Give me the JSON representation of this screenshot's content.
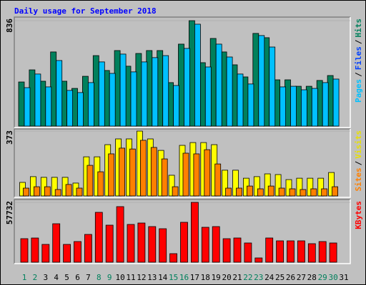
{
  "chart_data": [
    {
      "type": "bar",
      "title": "Daily usage for September 2018",
      "ylim": [
        0,
        836
      ],
      "yticks": [
        836
      ],
      "legend_separator": "/",
      "series": [
        {
          "name": "Pages",
          "color": "#00c0ff",
          "values": [
            305,
            413,
            311,
            520,
            283,
            266,
            345,
            509,
            418,
            571,
            430,
            509,
            543,
            559,
            322,
            616,
            808,
            469,
            650,
            548,
            413,
            334,
            718,
            627,
            311,
            316,
            288,
            299,
            345,
            373,
            null
          ]
        },
        {
          "name": "Files",
          "color": "#0040ff",
          "values": [
            null,
            null,
            null,
            null,
            null,
            null,
            null,
            null,
            null,
            null,
            null,
            null,
            null,
            null,
            null,
            null,
            null,
            null,
            null,
            null,
            null,
            null,
            null,
            null,
            null,
            null,
            null,
            null,
            null,
            null,
            null
          ]
        },
        {
          "name": "Hits",
          "color": "#00805c",
          "values": [
            350,
            446,
            356,
            588,
            356,
            299,
            395,
            559,
            441,
            599,
            475,
            576,
            599,
            599,
            345,
            650,
            836,
            503,
            695,
            588,
            486,
            390,
            735,
            701,
            367,
            367,
            316,
            316,
            362,
            401,
            null
          ]
        }
      ]
    },
    {
      "type": "bar",
      "ylim": [
        0,
        373
      ],
      "yticks": [
        373
      ],
      "legend_separator": "/",
      "series": [
        {
          "name": "Sites",
          "color": "#ff8000",
          "values": [
            45,
            53,
            53,
            37,
            66,
            45,
            176,
            139,
            242,
            275,
            270,
            320,
            279,
            213,
            53,
            246,
            242,
            266,
            184,
            45,
            45,
            57,
            41,
            57,
            45,
            41,
            37,
            41,
            41,
            53,
            null
          ]
        },
        {
          "name": "Visits",
          "color": "#ffff00",
          "values": [
            78,
            111,
            107,
            107,
            107,
            74,
            225,
            225,
            295,
            328,
            328,
            373,
            328,
            262,
            119,
            291,
            307,
            307,
            295,
            148,
            148,
            102,
            111,
            127,
            123,
            94,
            102,
            102,
            102,
            135,
            null
          ]
        }
      ]
    },
    {
      "type": "bar",
      "ylim": [
        0,
        57732
      ],
      "yticks": [
        57732
      ],
      "categories": [
        "1",
        "2",
        "3",
        "4",
        "5",
        "6",
        "7",
        "8",
        "9",
        "10",
        "11",
        "12",
        "13",
        "14",
        "15",
        "16",
        "17",
        "18",
        "19",
        "20",
        "21",
        "22",
        "23",
        "24",
        "25",
        "26",
        "27",
        "28",
        "29",
        "30",
        "31"
      ],
      "category_colors": [
        "#00805c",
        "#00805c",
        "#000000",
        "#000000",
        "#000000",
        "#000000",
        "#000000",
        "#00805c",
        "#00805c",
        "#000000",
        "#000000",
        "#000000",
        "#000000",
        "#000000",
        "#00805c",
        "#00805c",
        "#000000",
        "#000000",
        "#000000",
        "#000000",
        "#000000",
        "#00805c",
        "#00805c",
        "#000000",
        "#000000",
        "#000000",
        "#000000",
        "#000000",
        "#00805c",
        "#00805c",
        "#000000"
      ],
      "series": [
        {
          "name": "KBytes",
          "color": "#ff0000",
          "values": [
            22700,
            23350,
            17180,
            37110,
            17180,
            19930,
            26800,
            48110,
            35740,
            53610,
            36430,
            37800,
            34360,
            32300,
            8250,
            38490,
            57732,
            33680,
            34360,
            22680,
            23370,
            18560,
            4120,
            23370,
            20620,
            20620,
            20620,
            17870,
            19930,
            18560,
            null
          ]
        }
      ]
    }
  ]
}
